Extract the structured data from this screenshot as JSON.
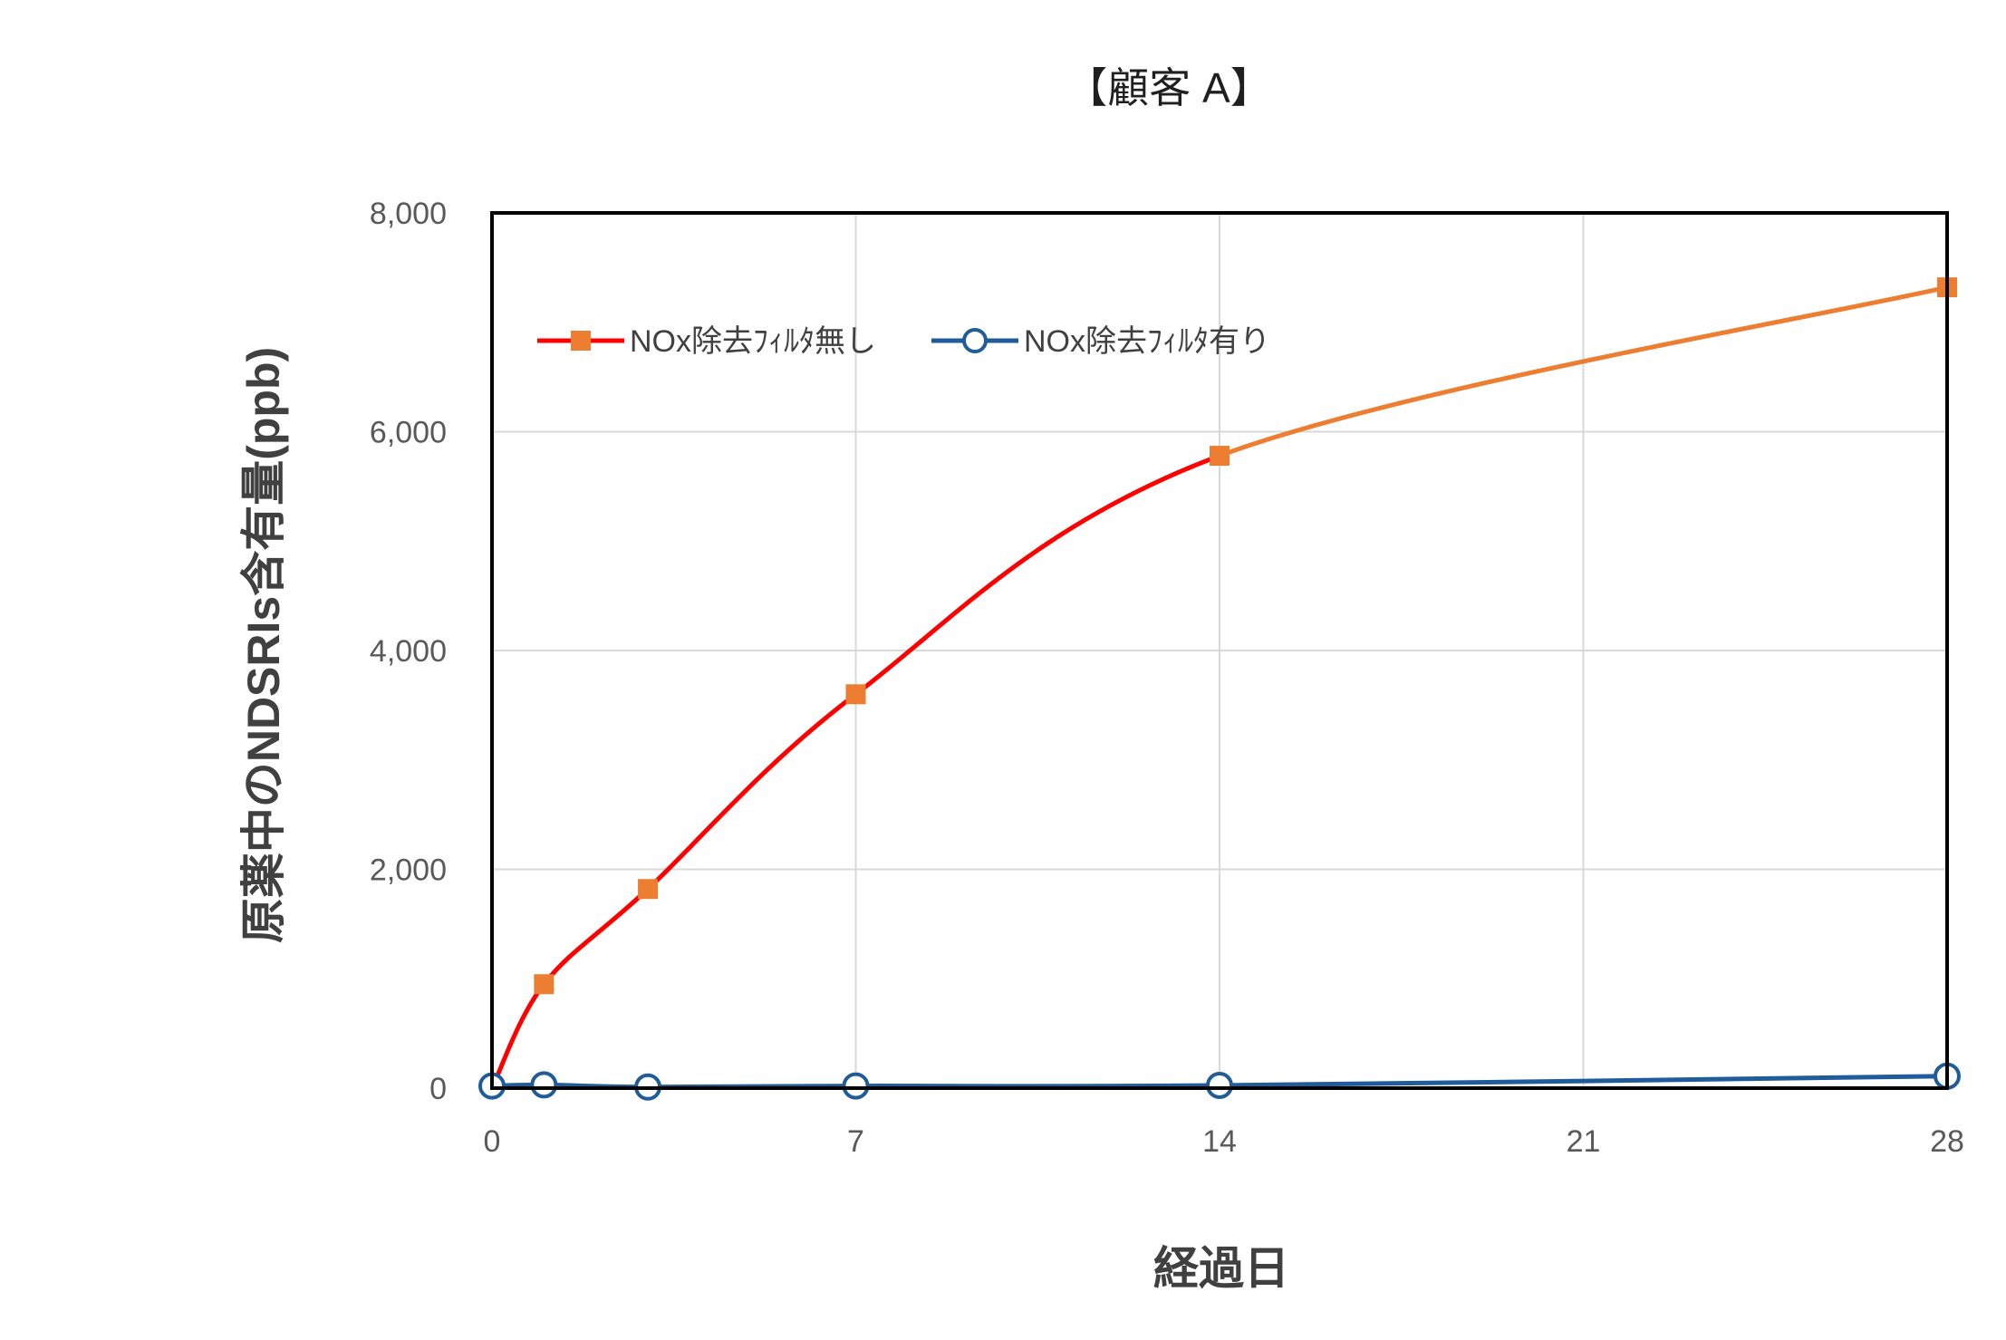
{
  "chart_data": {
    "type": "line",
    "title": "【顧客 A】",
    "xlabel": "経過日",
    "ylabel": "原薬中のNDSRIs含有量(ppb)",
    "xlim": [
      0,
      28
    ],
    "ylim": [
      0,
      8000
    ],
    "x_ticks": [
      "0",
      "7",
      "14",
      "21",
      "28"
    ],
    "x_tick_values": [
      0,
      7,
      14,
      21,
      28
    ],
    "y_ticks": [
      "0",
      "2,000",
      "4,000",
      "6,000",
      "8,000"
    ],
    "y_tick_values": [
      0,
      2000,
      4000,
      6000,
      8000
    ],
    "grid": true,
    "legend_position": "top-left",
    "smooth": true,
    "series": [
      {
        "name": "NOx除去ﾌｨﾙﾀ無し",
        "marker": "square",
        "line_color": "#ff0000",
        "line_color_late": "#ed7d31",
        "marker_color": "#ed7d31",
        "points": [
          {
            "x": 0,
            "y": 0
          },
          {
            "x": 1,
            "y": 950
          },
          {
            "x": 3,
            "y": 1820
          },
          {
            "x": 7,
            "y": 3600
          },
          {
            "x": 14,
            "y": 5780
          },
          {
            "x": 28,
            "y": 7320
          }
        ]
      },
      {
        "name": "NOx除去ﾌｨﾙﾀ有り",
        "marker": "circle",
        "line_color": "#1f5c99",
        "marker_color": "#1f5c99",
        "points": [
          {
            "x": 0,
            "y": 20
          },
          {
            "x": 1,
            "y": 30
          },
          {
            "x": 3,
            "y": 10
          },
          {
            "x": 7,
            "y": 20
          },
          {
            "x": 14,
            "y": 25
          },
          {
            "x": 28,
            "y": 110
          }
        ]
      }
    ]
  }
}
